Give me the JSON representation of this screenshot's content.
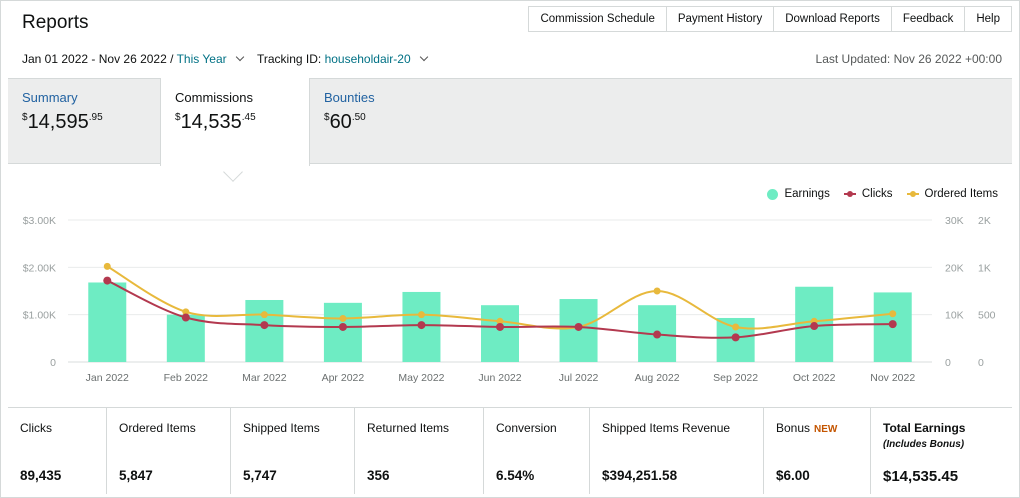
{
  "page": {
    "title": "Reports"
  },
  "topnav": [
    "Commission Schedule",
    "Payment History",
    "Download Reports",
    "Feedback",
    "Help"
  ],
  "filters": {
    "date_range": "Jan 01 2022 - Nov 26 2022 /",
    "period": "This Year",
    "tracking_label": "Tracking ID:",
    "tracking_value": "householdair-20"
  },
  "last_updated": "Last Updated: Nov 26 2022 +00:00",
  "tabs": [
    {
      "label": "Summary",
      "currency": "$",
      "whole": "14,595",
      "cents": ".95"
    },
    {
      "label": "Commissions",
      "currency": "$",
      "whole": "14,535",
      "cents": ".45"
    },
    {
      "label": "Bounties",
      "currency": "$",
      "whole": "60",
      "cents": ".50"
    }
  ],
  "legend": [
    "Earnings",
    "Clicks",
    "Ordered Items"
  ],
  "colors": {
    "earnings": "#6eecc3",
    "clicks": "#b3394f",
    "ordered": "#e8b93c",
    "link": "#2162a1",
    "bonus_new": "#c45500"
  },
  "chart_data": {
    "type": "bar",
    "categories": [
      "Jan 2022",
      "Feb 2022",
      "Mar 2022",
      "Apr 2022",
      "May 2022",
      "Jun 2022",
      "Jul 2022",
      "Aug 2022",
      "Sep 2022",
      "Oct 2022",
      "Nov 2022"
    ],
    "series": [
      {
        "name": "Earnings",
        "type": "bar",
        "axis": "left",
        "values": [
          1680,
          1000,
          1310,
          1250,
          1480,
          1200,
          1330,
          1200,
          930,
          1590,
          1470
        ]
      },
      {
        "name": "Clicks",
        "type": "line",
        "axis": "right1",
        "values": [
          17200,
          9400,
          7800,
          7400,
          7800,
          7400,
          7400,
          5800,
          5200,
          7600,
          8000
        ]
      },
      {
        "name": "Ordered Items",
        "type": "line",
        "axis": "right2",
        "values": [
          1010,
          530,
          500,
          460,
          500,
          430,
          370,
          750,
          370,
          430,
          510
        ]
      }
    ],
    "y_left": {
      "min": 0,
      "max": 3000,
      "ticks": [
        "0",
        "$1.00K",
        "$2.00K",
        "$3.00K"
      ]
    },
    "y_right1": {
      "min": 0,
      "max": 30000,
      "ticks": [
        "0",
        "10K",
        "20K",
        "30K"
      ]
    },
    "y_right2": {
      "min": 0,
      "max": 1500,
      "ticks": [
        "0",
        "500",
        "1K",
        "2K"
      ]
    },
    "grid": true,
    "legend_position": "top-right"
  },
  "stats": [
    {
      "label": "Clicks",
      "value": "89,435"
    },
    {
      "label": "Ordered Items",
      "value": "5,847"
    },
    {
      "label": "Shipped Items",
      "value": "5,747"
    },
    {
      "label": "Returned Items",
      "value": "356"
    },
    {
      "label": "Conversion",
      "value": "6.54%"
    },
    {
      "label": "Shipped Items Revenue",
      "value": "$394,251.58"
    },
    {
      "label": "Bonus",
      "badge": "NEW",
      "value": "$6.00"
    },
    {
      "label": "Total Earnings",
      "sub": "(Includes Bonus)",
      "value": "$14,535.45"
    }
  ]
}
